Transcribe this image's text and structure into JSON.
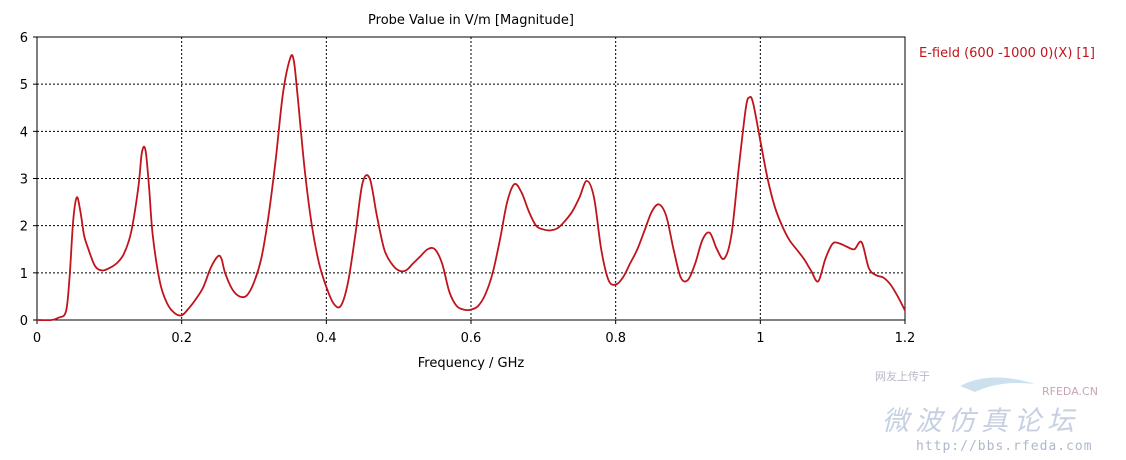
{
  "chart_data": {
    "type": "line",
    "title": "Probe Value in V/m [Magnitude]",
    "xlabel": "Frequency / GHz",
    "ylabel": "",
    "xlim": [
      0,
      1.2
    ],
    "ylim": [
      0,
      6
    ],
    "xticks": [
      0,
      0.2,
      0.4,
      0.6,
      0.8,
      1,
      1.2
    ],
    "xtick_labels": [
      "0",
      "0.2",
      "0.4",
      "0.6",
      "0.8",
      "1",
      "1.2"
    ],
    "yticks": [
      0,
      1,
      2,
      3,
      4,
      5,
      6
    ],
    "ytick_labels": [
      "0",
      "1",
      "2",
      "3",
      "4",
      "5",
      "6"
    ],
    "grid": true,
    "legend_position": "right",
    "series": [
      {
        "name": "E-field (600 -1000 0)(X) [1]",
        "color": "#c0141c",
        "x": [
          0,
          0.02,
          0.03,
          0.04,
          0.045,
          0.05,
          0.055,
          0.06,
          0.065,
          0.07,
          0.08,
          0.09,
          0.1,
          0.11,
          0.12,
          0.13,
          0.14,
          0.145,
          0.15,
          0.155,
          0.16,
          0.17,
          0.18,
          0.19,
          0.2,
          0.21,
          0.22,
          0.23,
          0.24,
          0.25,
          0.255,
          0.26,
          0.27,
          0.28,
          0.29,
          0.3,
          0.31,
          0.32,
          0.33,
          0.34,
          0.35,
          0.355,
          0.36,
          0.37,
          0.38,
          0.39,
          0.4,
          0.41,
          0.42,
          0.43,
          0.44,
          0.45,
          0.46,
          0.47,
          0.48,
          0.49,
          0.5,
          0.51,
          0.52,
          0.53,
          0.54,
          0.55,
          0.56,
          0.57,
          0.58,
          0.59,
          0.6,
          0.61,
          0.62,
          0.63,
          0.64,
          0.65,
          0.66,
          0.67,
          0.68,
          0.69,
          0.7,
          0.71,
          0.72,
          0.73,
          0.74,
          0.75,
          0.76,
          0.77,
          0.78,
          0.79,
          0.8,
          0.81,
          0.82,
          0.83,
          0.84,
          0.85,
          0.86,
          0.87,
          0.88,
          0.89,
          0.9,
          0.91,
          0.92,
          0.93,
          0.94,
          0.95,
          0.96,
          0.97,
          0.98,
          0.985,
          0.99,
          1.0,
          1.01,
          1.02,
          1.03,
          1.04,
          1.05,
          1.06,
          1.07,
          1.08,
          1.09,
          1.1,
          1.11,
          1.12,
          1.13,
          1.14,
          1.15,
          1.16,
          1.17,
          1.18,
          1.19,
          1.2
        ],
        "y": [
          0.0,
          0.0,
          0.05,
          0.18,
          0.9,
          2.1,
          2.6,
          2.3,
          1.8,
          1.55,
          1.15,
          1.05,
          1.1,
          1.2,
          1.4,
          1.85,
          2.8,
          3.55,
          3.6,
          2.8,
          1.8,
          0.8,
          0.35,
          0.15,
          0.1,
          0.25,
          0.45,
          0.7,
          1.1,
          1.35,
          1.3,
          1.0,
          0.65,
          0.5,
          0.52,
          0.8,
          1.3,
          2.2,
          3.4,
          4.8,
          5.55,
          5.5,
          4.8,
          3.2,
          2.0,
          1.2,
          0.7,
          0.35,
          0.3,
          0.8,
          1.8,
          2.9,
          3.0,
          2.2,
          1.5,
          1.2,
          1.05,
          1.05,
          1.2,
          1.35,
          1.5,
          1.5,
          1.2,
          0.6,
          0.3,
          0.22,
          0.22,
          0.3,
          0.55,
          1.0,
          1.7,
          2.5,
          2.88,
          2.7,
          2.3,
          2.0,
          1.92,
          1.9,
          1.95,
          2.1,
          2.3,
          2.6,
          2.95,
          2.6,
          1.5,
          0.85,
          0.75,
          0.9,
          1.2,
          1.5,
          1.9,
          2.3,
          2.45,
          2.2,
          1.5,
          0.9,
          0.85,
          1.2,
          1.7,
          1.85,
          1.5,
          1.3,
          1.8,
          3.2,
          4.5,
          4.72,
          4.6,
          3.8,
          3.0,
          2.4,
          2.0,
          1.7,
          1.5,
          1.3,
          1.05,
          0.82,
          1.3,
          1.62,
          1.62,
          1.55,
          1.5,
          1.65,
          1.1,
          0.95,
          0.9,
          0.75,
          0.5,
          0.2
        ]
      }
    ]
  },
  "watermark": {
    "top_line": "网友上传于",
    "brand": "RFEDA.CN",
    "big_text": "微波仿真论坛",
    "url": "http://bbs.rfeda.com"
  }
}
